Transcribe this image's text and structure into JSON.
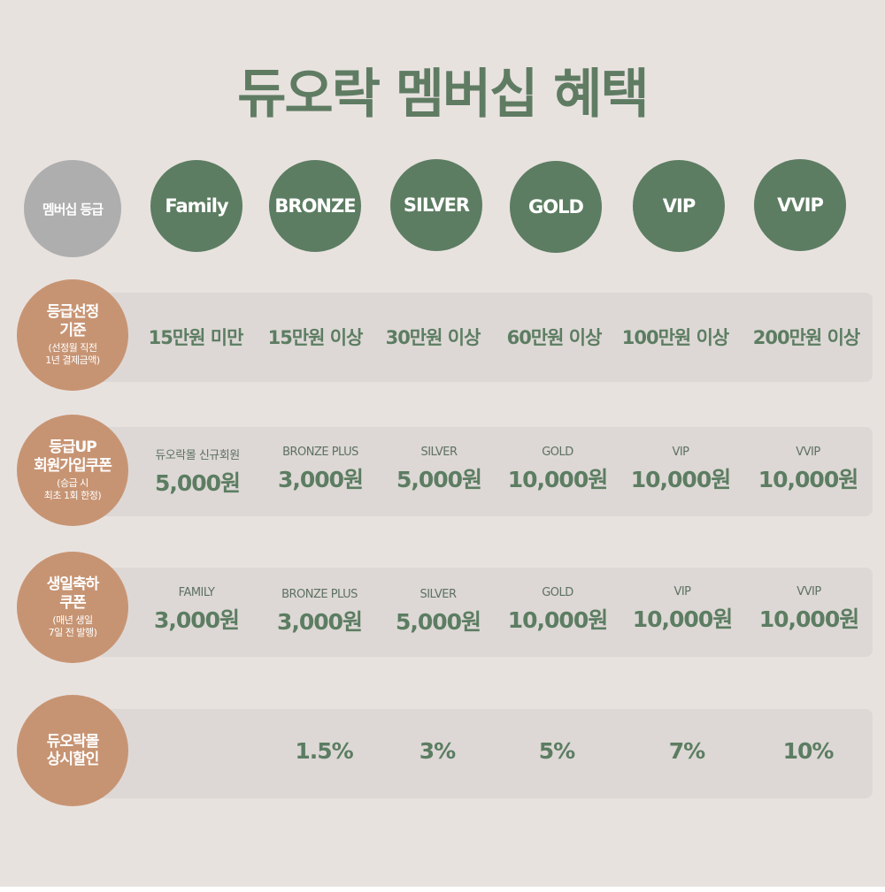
{
  "title": "듀오락 멤버십 혜택",
  "grades": {
    "header": "멤버십 등급",
    "items": [
      "Family",
      "BRONZE",
      "SILVER",
      "GOLD",
      "VIP",
      "VVIP"
    ]
  },
  "rows": {
    "criteria": {
      "label_main": "등급선정\n기준",
      "label_sub": "(선정월 직전\n1년 결제금액)",
      "values": [
        "15만원 미만",
        "15만원 이상",
        "30만원 이상",
        "60만원 이상",
        "100만원 이상",
        "200만원 이상"
      ]
    },
    "upgrade": {
      "label_main": "등급UP\n회원가입쿠폰",
      "label_sub": "(승급 시\n최초 1회 한정)",
      "cells": [
        {
          "name": "듀오락몰 신규회원",
          "amount": "5,000원"
        },
        {
          "name": "BRONZE PLUS",
          "amount": "3,000원"
        },
        {
          "name": "SILVER",
          "amount": "5,000원"
        },
        {
          "name": "GOLD",
          "amount": "10,000원"
        },
        {
          "name": "VIP",
          "amount": "10,000원"
        },
        {
          "name": "VVIP",
          "amount": "10,000원"
        }
      ]
    },
    "birthday": {
      "label_main": "생일축하\n쿠폰",
      "label_sub": "(매년 생일\n7일 전 발행)",
      "cells": [
        {
          "name": "FAMILY",
          "amount": "3,000원"
        },
        {
          "name": "BRONZE PLUS",
          "amount": "3,000원"
        },
        {
          "name": "SILVER",
          "amount": "5,000원"
        },
        {
          "name": "GOLD",
          "amount": "10,000원"
        },
        {
          "name": "VIP",
          "amount": "10,000원"
        },
        {
          "name": "VVIP",
          "amount": "10,000원"
        }
      ]
    },
    "discount": {
      "label_main": "듀오락몰\n상시할인",
      "values": [
        "1.5%",
        "3%",
        "5%",
        "7%",
        "10%"
      ]
    }
  },
  "colors": {
    "accent_green": "#5c7d62",
    "label_brown": "#c79473",
    "header_gray": "#aeaeae",
    "background": "#e8e2df",
    "band": "#ddd8d5"
  }
}
